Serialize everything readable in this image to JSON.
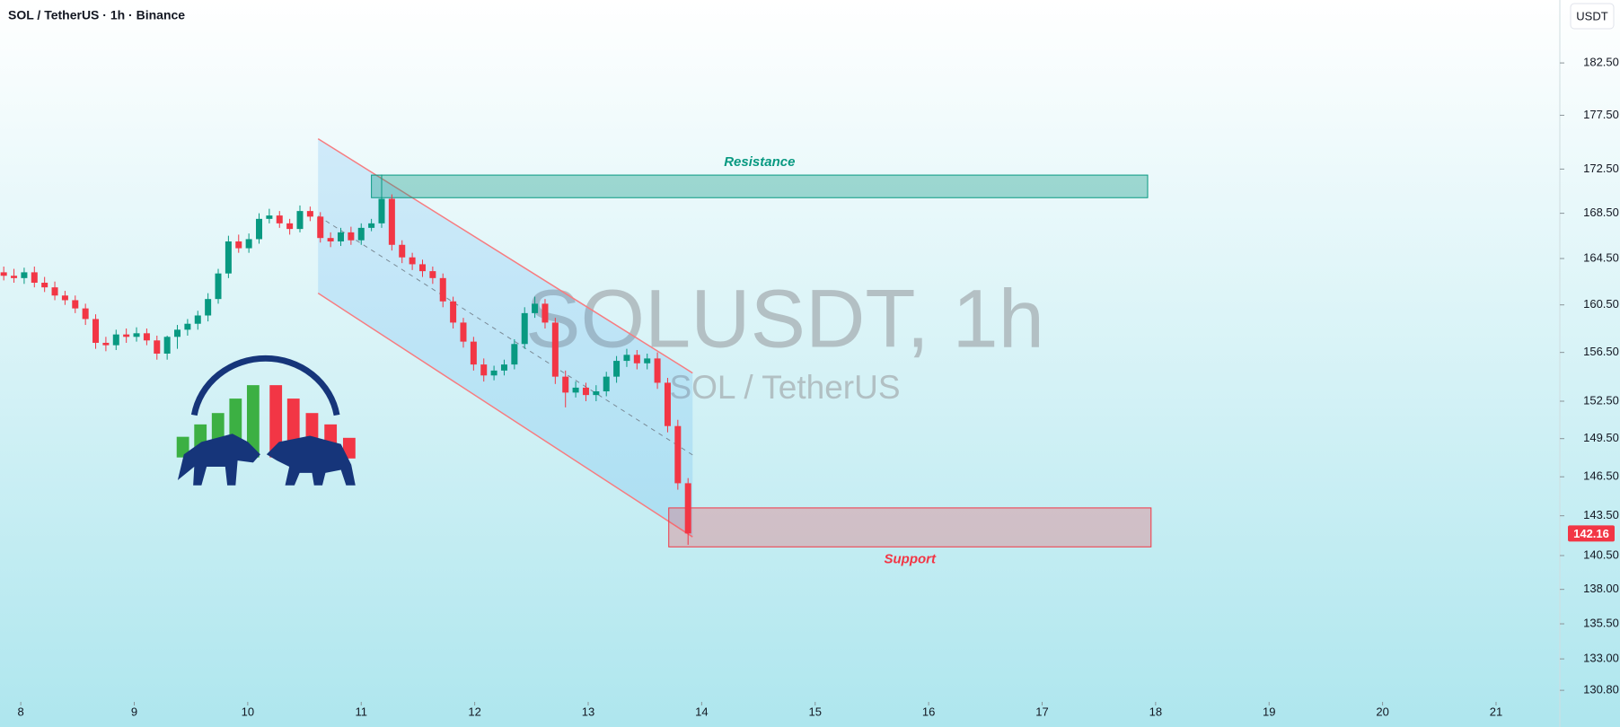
{
  "chart_data": {
    "type": "candlestick",
    "title": "SOL / TetherUS · 1h · Binance",
    "currency": "USDT",
    "watermark": "SOLUSDT, 1h",
    "watermark_subtitle": "SOL / TetherUS",
    "x": [
      7.85,
      7.94,
      8.03,
      8.12,
      8.21,
      8.3,
      8.39,
      8.48,
      8.57,
      8.66,
      8.75,
      8.84,
      8.93,
      9.02,
      9.11,
      9.2,
      9.29,
      9.38,
      9.47,
      9.56,
      9.65,
      9.74,
      9.83,
      9.92,
      10.01,
      10.1,
      10.19,
      10.28,
      10.37,
      10.46,
      10.55,
      10.64,
      10.73,
      10.82,
      10.91,
      11,
      11.09,
      11.18,
      11.27,
      11.36,
      11.45,
      11.54,
      11.63,
      11.72,
      11.81,
      11.9,
      11.99,
      12.08,
      12.17,
      12.26,
      12.35,
      12.44,
      12.53,
      12.62,
      12.71,
      12.8,
      12.89,
      12.98,
      13.07,
      13.16,
      13.25,
      13.34,
      13.43,
      13.52,
      13.61,
      13.7,
      13.79,
      13.88
    ],
    "open": [
      163.3,
      163.0,
      162.8,
      163.3,
      162.4,
      162.0,
      161.3,
      160.9,
      160.2,
      159.3,
      157.3,
      157.1,
      158.0,
      157.8,
      158.1,
      157.5,
      156.4,
      157.8,
      158.4,
      158.9,
      159.6,
      161.0,
      163.2,
      166.0,
      165.4,
      166.2,
      168.0,
      168.3,
      167.6,
      167.1,
      168.7,
      168.2,
      166.3,
      166.0,
      166.8,
      166.1,
      167.2,
      167.6,
      169.8,
      165.7,
      164.6,
      164.0,
      163.4,
      162.8,
      160.8,
      159.0,
      157.4,
      155.5,
      154.6,
      155.0,
      155.5,
      157.2,
      159.8,
      160.6,
      159.0,
      154.5,
      153.2,
      153.6,
      153.0,
      153.3,
      154.5,
      155.8,
      156.3,
      155.6,
      156.0,
      154.0,
      150.5,
      146.0
    ],
    "high": [
      163.8,
      163.6,
      163.7,
      163.8,
      162.9,
      162.5,
      161.7,
      161.3,
      160.6,
      159.7,
      157.8,
      158.4,
      158.5,
      158.6,
      158.5,
      157.9,
      157.9,
      158.8,
      159.3,
      160.0,
      161.5,
      163.6,
      166.5,
      166.6,
      166.7,
      168.5,
      168.9,
      168.7,
      168.0,
      169.2,
      169.1,
      168.6,
      166.8,
      167.2,
      167.3,
      167.6,
      168.0,
      172.0,
      170.2,
      166.1,
      165.0,
      164.4,
      163.8,
      163.2,
      161.2,
      159.4,
      157.8,
      156.0,
      155.4,
      155.9,
      157.6,
      160.3,
      161.2,
      161.0,
      159.4,
      155.0,
      154.1,
      154.0,
      153.8,
      154.9,
      156.2,
      156.8,
      156.7,
      156.4,
      156.5,
      154.4,
      151.0,
      146.4
    ],
    "low": [
      162.6,
      162.4,
      162.3,
      162.0,
      161.6,
      160.9,
      160.5,
      159.8,
      158.8,
      156.8,
      156.6,
      156.7,
      157.3,
      157.4,
      157.1,
      155.9,
      155.9,
      156.8,
      157.9,
      158.4,
      159.1,
      160.6,
      162.8,
      165.0,
      165.0,
      165.8,
      167.6,
      167.2,
      166.6,
      166.8,
      167.8,
      165.9,
      165.5,
      165.6,
      165.7,
      165.7,
      166.9,
      167.2,
      165.2,
      164.1,
      163.5,
      162.9,
      162.3,
      160.3,
      158.5,
      156.9,
      155.0,
      154.1,
      154.2,
      154.6,
      155.1,
      156.8,
      159.4,
      158.5,
      153.9,
      152.0,
      152.8,
      152.5,
      152.5,
      152.9,
      154.0,
      155.3,
      155.1,
      155.1,
      153.5,
      150.0,
      145.5,
      141.3
    ],
    "close": [
      163.0,
      162.8,
      163.3,
      162.4,
      162.0,
      161.3,
      160.9,
      160.2,
      159.3,
      157.3,
      157.1,
      158.0,
      157.8,
      158.1,
      157.5,
      156.4,
      157.8,
      158.4,
      158.9,
      159.6,
      161.0,
      163.2,
      166.0,
      165.4,
      166.2,
      168.0,
      168.3,
      167.6,
      167.1,
      168.7,
      168.2,
      166.3,
      166.0,
      166.8,
      166.1,
      167.2,
      167.6,
      169.8,
      165.7,
      164.6,
      164.0,
      163.4,
      162.8,
      160.8,
      159.0,
      157.4,
      155.5,
      154.6,
      155.0,
      155.5,
      157.2,
      159.8,
      160.6,
      159.0,
      154.5,
      153.2,
      153.6,
      153.0,
      153.3,
      154.5,
      155.8,
      156.3,
      155.6,
      156.0,
      154.0,
      150.5,
      146.0,
      142.16
    ],
    "up_color": "#089981",
    "down_color": "#f23645",
    "log_scale": true,
    "xlim": [
      7.817,
      21.562
    ],
    "ylim": [
      130.0,
      188.7
    ],
    "xticks": [
      8,
      9,
      10,
      11,
      12,
      13,
      14,
      15,
      16,
      17,
      18,
      19,
      20,
      21
    ],
    "yticks": [
      {
        "value": 182.5,
        "label": "182.50"
      },
      {
        "value": 177.5,
        "label": "177.50"
      },
      {
        "value": 172.5,
        "label": "172.50"
      },
      {
        "value": 168.5,
        "label": "168.50"
      },
      {
        "value": 164.5,
        "label": "164.50"
      },
      {
        "value": 160.5,
        "label": "160.50"
      },
      {
        "value": 156.5,
        "label": "156.50"
      },
      {
        "value": 152.5,
        "label": "152.50"
      },
      {
        "value": 149.5,
        "label": "149.50"
      },
      {
        "value": 146.5,
        "label": "146.50"
      },
      {
        "value": 143.5,
        "label": "143.50"
      },
      {
        "value": 140.5,
        "label": "140.50"
      },
      {
        "value": 138,
        "label": "138.00"
      },
      {
        "value": 135.5,
        "label": "135.50"
      },
      {
        "value": 133,
        "label": "133.00"
      },
      {
        "value": 130.8,
        "label": "130.80"
      }
    ],
    "last_price": 142.16,
    "channel": {
      "x": [
        10.62,
        13.92
      ],
      "upper": [
        175.3,
        154.8
      ],
      "lower": [
        161.5,
        141.9
      ]
    },
    "zones": [
      {
        "label": "Resistance",
        "color": "#089981",
        "x": [
          11.09,
          17.93
        ],
        "y": [
          169.9,
          171.95
        ]
      },
      {
        "label": "Support",
        "color": "#f23645",
        "x": [
          13.71,
          17.96
        ],
        "y": [
          141.15,
          144.1
        ]
      }
    ]
  }
}
